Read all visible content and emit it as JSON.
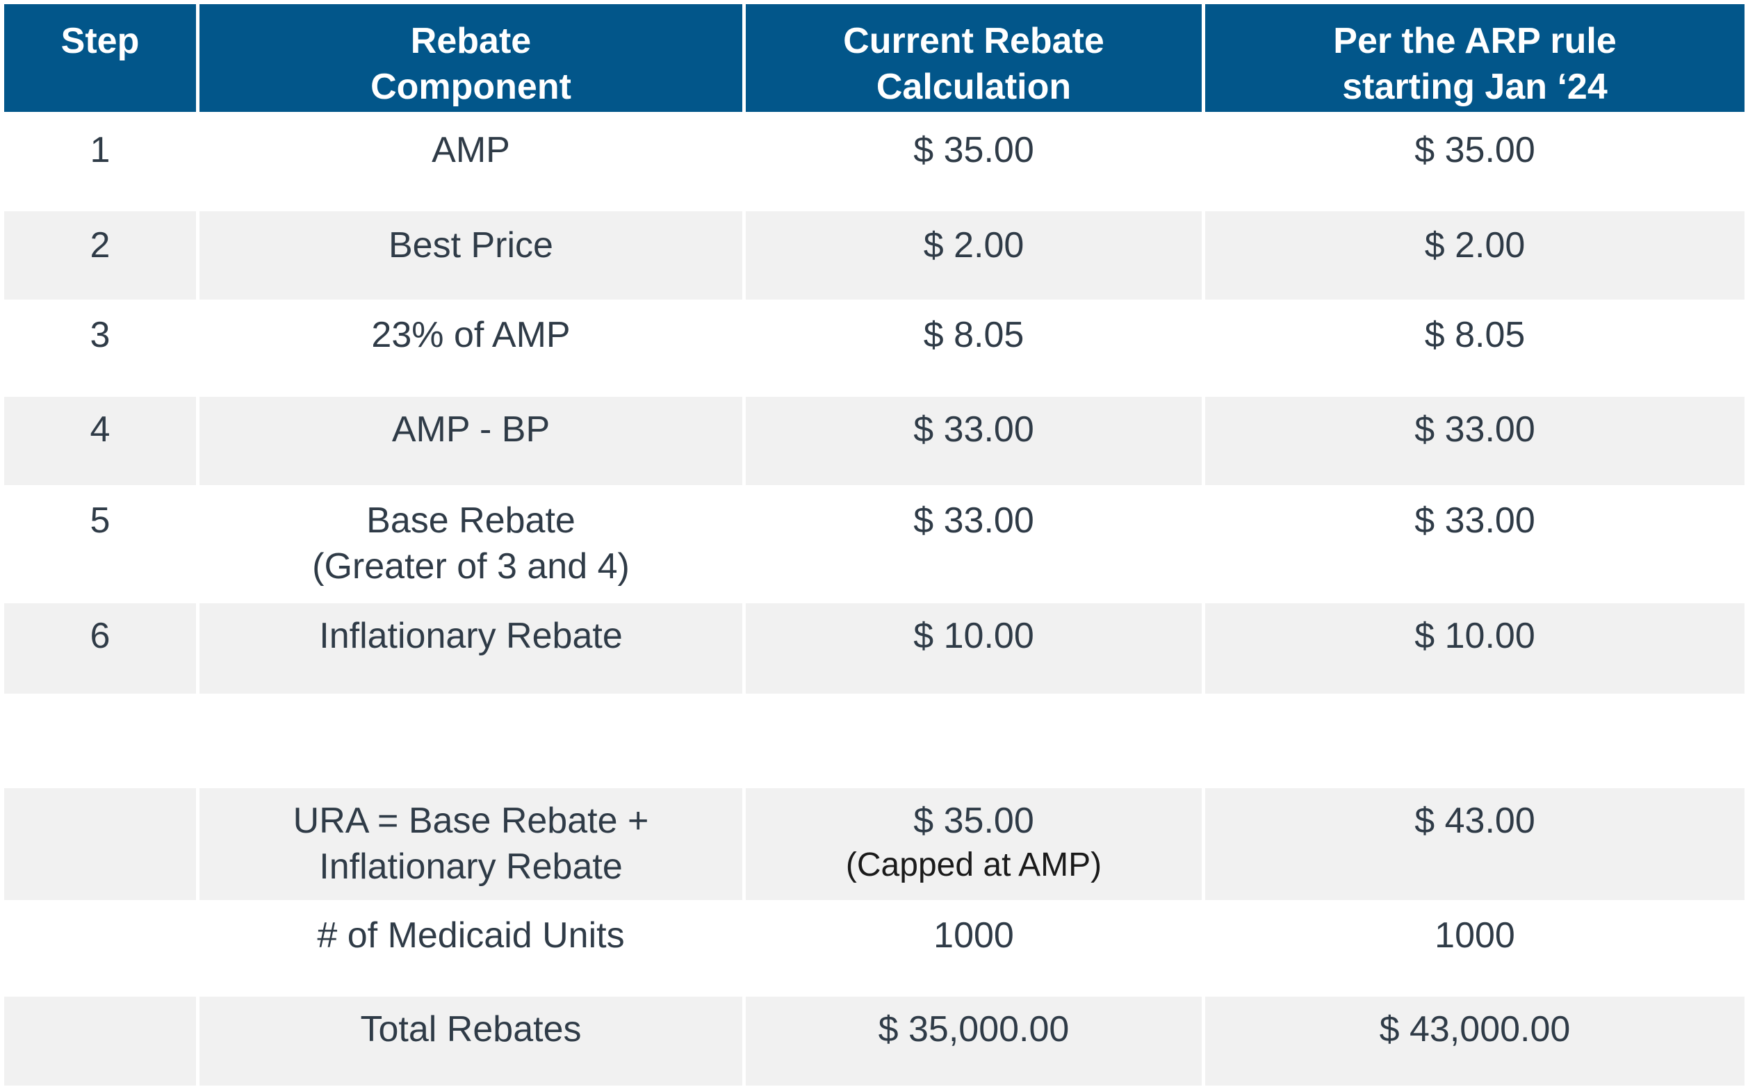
{
  "header": {
    "step": "Step",
    "component_1": "Rebate",
    "component_2": "Component",
    "current_1": "Current Rebate",
    "current_2": "Calculation",
    "arp_1": "Per the ARP rule",
    "arp_2": "starting Jan ‘24"
  },
  "rows": [
    {
      "step": "1",
      "component": "AMP",
      "current": "$ 35.00",
      "arp": "$ 35.00"
    },
    {
      "step": "2",
      "component": "Best Price",
      "current": "$ 2.00",
      "arp": "$ 2.00"
    },
    {
      "step": "3",
      "component": "23% of AMP",
      "current": "$ 8.05",
      "arp": "$ 8.05"
    },
    {
      "step": "4",
      "component": "AMP - BP",
      "current": "$ 33.00",
      "arp": "$ 33.00"
    },
    {
      "step": "5",
      "component": "Base Rebate",
      "component_note": "(Greater of 3 and 4)",
      "current": "$ 33.00",
      "arp": "$ 33.00"
    },
    {
      "step": "6",
      "component": "Inflationary Rebate",
      "current": "$ 10.00",
      "arp": "$ 10.00"
    }
  ],
  "summary": {
    "ura_label_1": "URA = Base Rebate +",
    "ura_label_2": "Inflationary Rebate",
    "ura_current": "$ 35.00",
    "ura_current_note": "(Capped at AMP)",
    "ura_arp": "$ 43.00",
    "units_label": "# of Medicaid Units",
    "units_current": "1000",
    "units_arp": "1000",
    "total_label": "Total Rebates",
    "total_current": "$ 35,000.00",
    "total_arp": "$ 43,000.00"
  },
  "colors": {
    "header_bg": "#02568a",
    "shade_bg": "#f1f1f1",
    "text": "#2f3b47"
  }
}
